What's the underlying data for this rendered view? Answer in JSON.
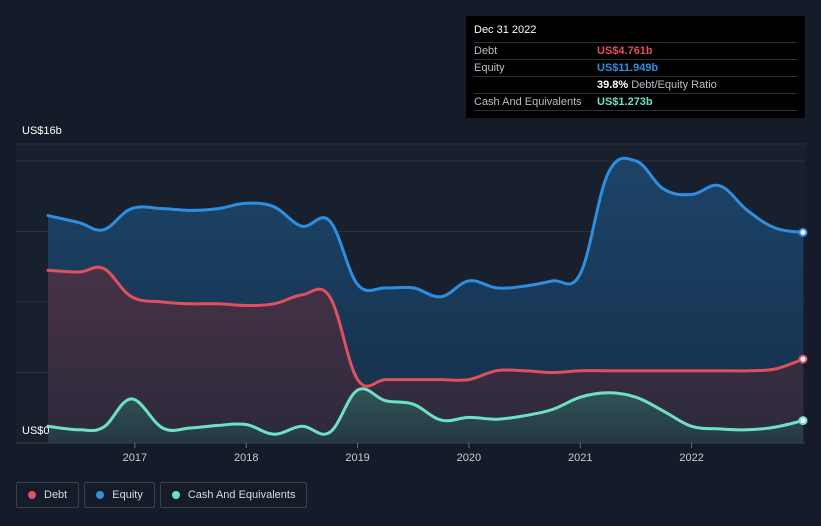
{
  "chart_data": {
    "type": "area",
    "y_axis": {
      "min": 0,
      "max": 16,
      "top_label": "US$16b",
      "bottom_label": "US$0"
    },
    "x_ticks": [
      {
        "label": "2017",
        "value": 2017.0
      },
      {
        "label": "2018",
        "value": 2018.0
      },
      {
        "label": "2019",
        "value": 2019.0
      },
      {
        "label": "2020",
        "value": 2020.0
      },
      {
        "label": "2021",
        "value": 2021.0
      },
      {
        "label": "2022",
        "value": 2022.0
      }
    ],
    "x_range": [
      2016.22,
      2023.0
    ],
    "series": [
      {
        "name": "Equity",
        "color": "#2e8fe0",
        "points": [
          [
            2016.22,
            12.9
          ],
          [
            2016.5,
            12.5
          ],
          [
            2016.72,
            12.1
          ],
          [
            2016.97,
            13.3
          ],
          [
            2017.25,
            13.3
          ],
          [
            2017.5,
            13.2
          ],
          [
            2017.75,
            13.3
          ],
          [
            2018.0,
            13.6
          ],
          [
            2018.25,
            13.4
          ],
          [
            2018.5,
            12.3
          ],
          [
            2018.75,
            12.6
          ],
          [
            2019.0,
            9.0
          ],
          [
            2019.25,
            8.8
          ],
          [
            2019.5,
            8.8
          ],
          [
            2019.75,
            8.3
          ],
          [
            2020.0,
            9.2
          ],
          [
            2020.25,
            8.8
          ],
          [
            2020.5,
            8.9
          ],
          [
            2020.75,
            9.2
          ],
          [
            2021.0,
            9.6
          ],
          [
            2021.25,
            15.3
          ],
          [
            2021.5,
            16.0
          ],
          [
            2021.75,
            14.4
          ],
          [
            2022.0,
            14.1
          ],
          [
            2022.25,
            14.6
          ],
          [
            2022.5,
            13.2
          ],
          [
            2022.75,
            12.2
          ],
          [
            2023.0,
            11.949
          ]
        ]
      },
      {
        "name": "Debt",
        "color": "#e0505f",
        "points": [
          [
            2016.22,
            9.8
          ],
          [
            2016.5,
            9.7
          ],
          [
            2016.72,
            9.9
          ],
          [
            2016.97,
            8.3
          ],
          [
            2017.25,
            8.0
          ],
          [
            2017.5,
            7.9
          ],
          [
            2017.75,
            7.9
          ],
          [
            2018.0,
            7.8
          ],
          [
            2018.25,
            7.9
          ],
          [
            2018.5,
            8.4
          ],
          [
            2018.75,
            8.3
          ],
          [
            2019.0,
            3.6
          ],
          [
            2019.25,
            3.6
          ],
          [
            2019.5,
            3.6
          ],
          [
            2019.75,
            3.6
          ],
          [
            2020.0,
            3.6
          ],
          [
            2020.25,
            4.1
          ],
          [
            2020.5,
            4.1
          ],
          [
            2020.75,
            4.0
          ],
          [
            2021.0,
            4.1
          ],
          [
            2021.25,
            4.1
          ],
          [
            2021.5,
            4.1
          ],
          [
            2021.75,
            4.1
          ],
          [
            2022.0,
            4.1
          ],
          [
            2022.25,
            4.1
          ],
          [
            2022.5,
            4.1
          ],
          [
            2022.75,
            4.2
          ],
          [
            2023.0,
            4.761
          ]
        ]
      },
      {
        "name": "Cash And Equivalents",
        "color": "#6fe0c7",
        "points": [
          [
            2016.22,
            0.95
          ],
          [
            2016.5,
            0.75
          ],
          [
            2016.72,
            0.9
          ],
          [
            2016.97,
            2.5
          ],
          [
            2017.25,
            0.85
          ],
          [
            2017.5,
            0.85
          ],
          [
            2017.75,
            1.0
          ],
          [
            2018.0,
            1.05
          ],
          [
            2018.25,
            0.5
          ],
          [
            2018.5,
            0.95
          ],
          [
            2018.75,
            0.6
          ],
          [
            2019.0,
            3.0
          ],
          [
            2019.25,
            2.4
          ],
          [
            2019.5,
            2.2
          ],
          [
            2019.75,
            1.3
          ],
          [
            2020.0,
            1.45
          ],
          [
            2020.25,
            1.35
          ],
          [
            2020.5,
            1.55
          ],
          [
            2020.75,
            1.9
          ],
          [
            2021.0,
            2.6
          ],
          [
            2021.25,
            2.85
          ],
          [
            2021.5,
            2.6
          ],
          [
            2021.75,
            1.8
          ],
          [
            2022.0,
            0.95
          ],
          [
            2022.25,
            0.8
          ],
          [
            2022.5,
            0.75
          ],
          [
            2022.75,
            0.9
          ],
          [
            2023.0,
            1.273
          ]
        ]
      }
    ],
    "grid": true
  },
  "tooltip": {
    "date": "Dec 31 2022",
    "rows": [
      {
        "label": "Debt",
        "value": "US$4.761b",
        "color": "#e0505f"
      },
      {
        "label": "Equity",
        "value": "US$11.949b",
        "color": "#2e8fe0"
      },
      {
        "label": "",
        "value": "39.8%",
        "extra": "Debt/Equity Ratio",
        "color": "#ffffff"
      },
      {
        "label": "Cash And Equivalents",
        "value": "US$1.273b",
        "color": "#6fe0c7"
      }
    ]
  },
  "legend": [
    {
      "label": "Debt",
      "color": "#e0505f"
    },
    {
      "label": "Equity",
      "color": "#2e8fe0"
    },
    {
      "label": "Cash And Equivalents",
      "color": "#6fe0c7"
    }
  ]
}
